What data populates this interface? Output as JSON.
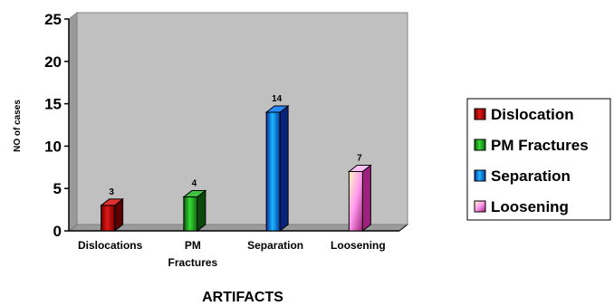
{
  "chart_data": {
    "type": "bar",
    "categories": [
      "Dislocations",
      "PM Fractures",
      "Separation",
      "Loosening"
    ],
    "category_lines": [
      [
        "Dislocations"
      ],
      [
        "PM",
        "Fractures"
      ],
      [
        "Separation"
      ],
      [
        "Loosening"
      ]
    ],
    "series": [
      {
        "name": "Dislocation",
        "category": "Dislocations",
        "value": 3,
        "color": "#c00000"
      },
      {
        "name": "PM Fractures",
        "category": "PM Fractures",
        "value": 4,
        "color": "#1f9e1f"
      },
      {
        "name": "Separation",
        "category": "Separation",
        "value": 14,
        "color": "#1e6cf0"
      },
      {
        "name": "Loosening",
        "category": "Loosening",
        "value": 7,
        "color": "#ff99ee"
      }
    ],
    "values": [
      3,
      4,
      14,
      7
    ],
    "data_labels": [
      "3",
      "4",
      "14",
      "7"
    ],
    "title": "",
    "xlabel": "ARTIFACTS",
    "ylabel": "NO of cases",
    "ylim": [
      0,
      25
    ],
    "yticks": [
      0,
      5,
      10,
      15,
      20,
      25
    ],
    "ytick_labels": [
      "0",
      "5",
      "10",
      "15",
      "20",
      "25"
    ],
    "grid": false,
    "plot_background": "#c0c0c0",
    "legend_position": "right"
  }
}
